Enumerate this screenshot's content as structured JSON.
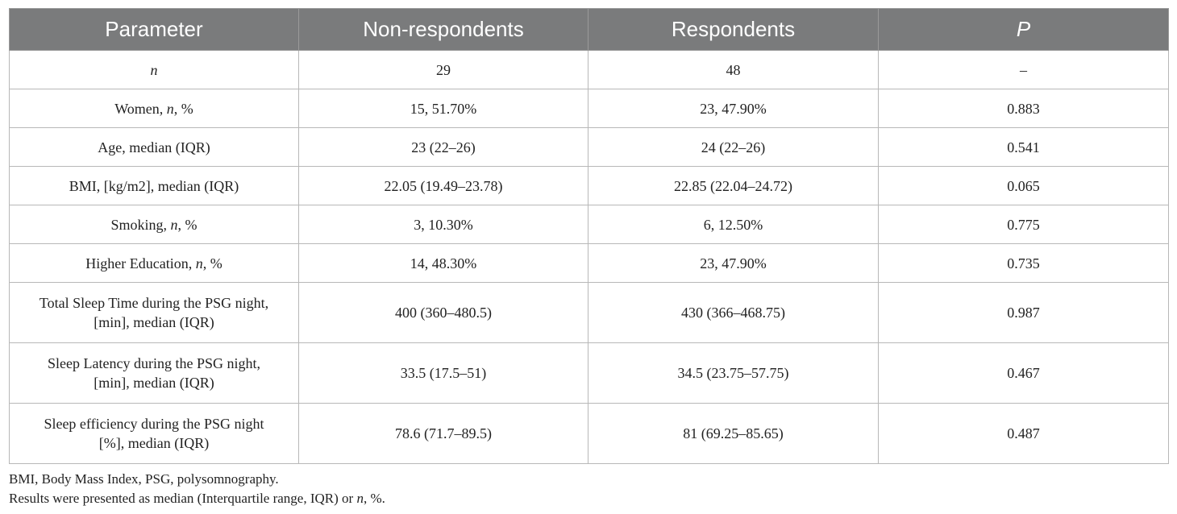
{
  "table": {
    "headers": [
      "Parameter",
      "Non-respondents",
      "Respondents",
      "P"
    ],
    "rows": [
      {
        "parameter_plain": "",
        "parameter_italic": "n",
        "parameter_suffix": "",
        "non_respondents": "29",
        "respondents": "48",
        "p": "–"
      },
      {
        "parameter_plain": "Women, ",
        "parameter_italic": "n",
        "parameter_suffix": ", %",
        "non_respondents": "15, 51.70%",
        "respondents": "23, 47.90%",
        "p": "0.883"
      },
      {
        "parameter_plain": "Age, median (IQR)",
        "parameter_italic": "",
        "parameter_suffix": "",
        "non_respondents": "23 (22–26)",
        "respondents": "24 (22–26)",
        "p": "0.541"
      },
      {
        "parameter_plain": "BMI, [kg/m2], median (IQR)",
        "parameter_italic": "",
        "parameter_suffix": "",
        "non_respondents": "22.05 (19.49–23.78)",
        "respondents": "22.85 (22.04–24.72)",
        "p": "0.065"
      },
      {
        "parameter_plain": "Smoking, ",
        "parameter_italic": "n",
        "parameter_suffix": ", %",
        "non_respondents": "3, 10.30%",
        "respondents": "6, 12.50%",
        "p": "0.775"
      },
      {
        "parameter_plain": "Higher Education, ",
        "parameter_italic": "n",
        "parameter_suffix": ", %",
        "non_respondents": "14, 48.30%",
        "respondents": "23, 47.90%",
        "p": "0.735"
      },
      {
        "parameter_line1": "Total Sleep Time during the PSG night,",
        "parameter_line2": "[min], median (IQR)",
        "non_respondents": "400 (360–480.5)",
        "respondents": "430 (366–468.75)",
        "p": "0.987"
      },
      {
        "parameter_line1": "Sleep Latency during the PSG night,",
        "parameter_line2": "[min], median (IQR)",
        "non_respondents": "33.5 (17.5–51)",
        "respondents": "34.5 (23.75–57.75)",
        "p": "0.467"
      },
      {
        "parameter_line1": "Sleep efficiency during the PSG night",
        "parameter_line2": "[%], median (IQR)",
        "non_respondents": "78.6 (71.7–89.5)",
        "respondents": "81 (69.25–85.65)",
        "p": "0.487"
      }
    ]
  },
  "footnotes": {
    "line1": "BMI, Body Mass Index, PSG, polysomnography.",
    "line2_prefix": "Results were presented as median (Interquartile range, IQR) or ",
    "line2_italic": "n",
    "line2_suffix": ", %."
  }
}
